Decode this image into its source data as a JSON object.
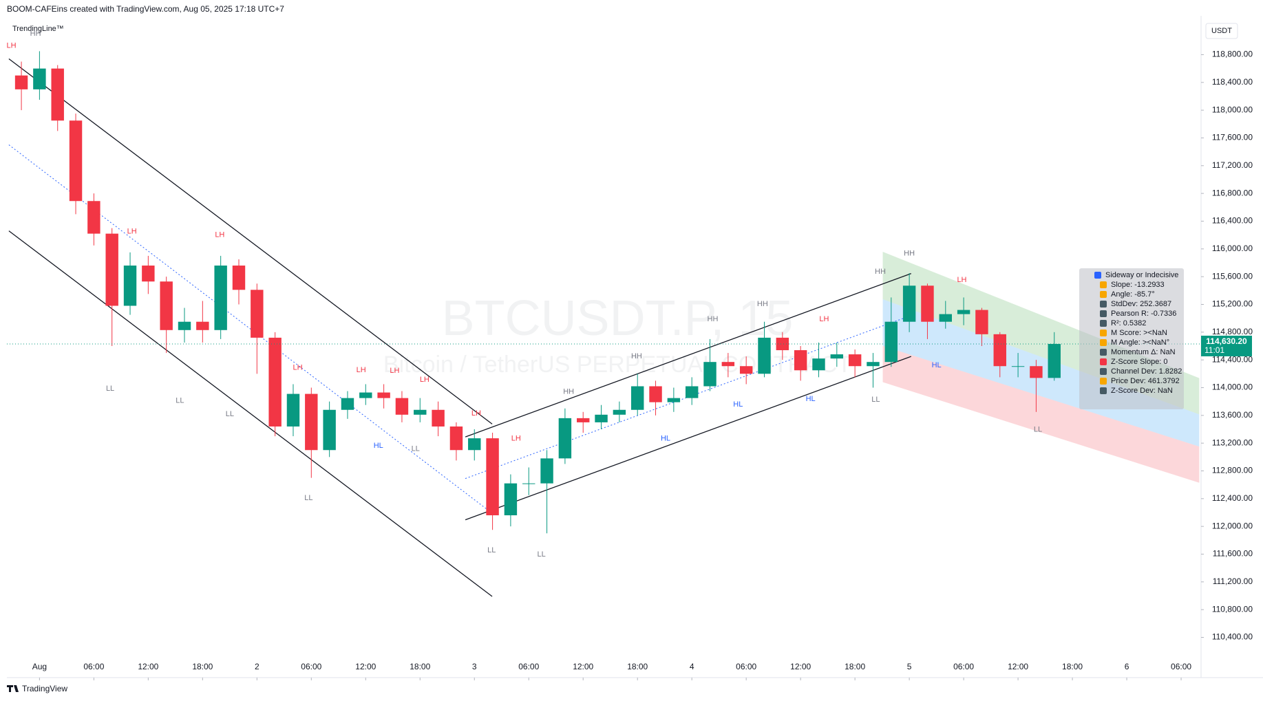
{
  "header": {
    "credit": "BOOM-CAFEins created with TradingView.com, Aug 05, 2025 17:18 UTC+7",
    "indicator": "TrendingLine™",
    "brand": "TradingView"
  },
  "info_panel": {
    "lines": [
      "Sideway or Indecisive",
      "Slope: -13.2933",
      "Angle: -85.7°",
      "StdDev: 252.3687",
      "Pearson R: -0.7336",
      "R²: 0.5382",
      "M Score: ><NaN",
      "M Angle: ><NaN°",
      "Momentum Δ: NaN",
      "Z-Score Slope: 0",
      "Channel Dev: 1.8282",
      "Price Dev: 461.3792",
      "Z-Score Dev: NaN"
    ]
  },
  "chart_data": {
    "type": "candlestick",
    "title": "BTCUSDT.P, 15",
    "subtitle": "Bitcoin / TetherUS PERPETUAL CONTRACT",
    "currency": "USDT",
    "up_color": "#089981",
    "down_color": "#f23645",
    "x": [
      -2,
      0,
      2,
      4,
      6,
      8,
      10,
      12,
      14,
      16,
      18,
      20,
      22,
      24,
      26,
      28,
      30,
      32,
      34,
      36,
      38,
      40,
      42,
      44,
      46,
      48,
      50,
      52,
      54,
      56,
      58,
      60,
      62,
      64,
      66,
      68,
      70,
      72,
      74,
      76,
      78,
      80,
      82,
      84,
      86,
      88,
      90,
      92,
      94,
      96,
      98,
      100,
      102,
      104,
      106,
      108,
      110,
      112
    ],
    "open": [
      118500,
      118300,
      118600,
      117850,
      116690,
      116220,
      115180,
      115760,
      115530,
      114830,
      114950,
      114830,
      115760,
      115410,
      114720,
      113440,
      113910,
      113100,
      113680,
      113850,
      113930,
      113850,
      113610,
      113680,
      113440,
      113100,
      113270,
      112160,
      112620,
      112620,
      112980,
      113560,
      113500,
      113610,
      113680,
      114020,
      113790,
      113850,
      114020,
      114370,
      114310,
      114200,
      114720,
      114540,
      114250,
      114420,
      114480,
      114310,
      114370,
      114950,
      115470,
      114950,
      115060,
      115120,
      114770,
      114310,
      114310,
      114140
    ],
    "high": [
      118700,
      118850,
      118650,
      117950,
      116800,
      116300,
      115950,
      115900,
      115600,
      115150,
      115250,
      115900,
      115850,
      115500,
      114800,
      114050,
      114000,
      113800,
      113950,
      114050,
      114050,
      113950,
      113850,
      113800,
      113500,
      113400,
      113350,
      112750,
      112850,
      113100,
      113700,
      113650,
      113750,
      113800,
      114200,
      114100,
      114000,
      114150,
      114700,
      114500,
      114450,
      114950,
      114800,
      114600,
      114650,
      114650,
      114550,
      114500,
      115300,
      115650,
      115500,
      115250,
      115300,
      115150,
      114800,
      114500,
      114400,
      114800
    ],
    "low": [
      118000,
      118150,
      117700,
      116500,
      116050,
      114600,
      115050,
      115350,
      114500,
      114650,
      114650,
      114700,
      115200,
      114200,
      113300,
      113300,
      112700,
      113000,
      113550,
      113750,
      113700,
      113500,
      113500,
      113300,
      112950,
      112950,
      111950,
      112000,
      112450,
      111900,
      112900,
      113350,
      113400,
      113500,
      113600,
      113600,
      113650,
      113750,
      113950,
      114150,
      114050,
      114150,
      114400,
      114100,
      114150,
      114300,
      114150,
      114000,
      114300,
      114800,
      114700,
      114850,
      114900,
      114600,
      114150,
      114150,
      113650,
      114100
    ],
    "close": [
      118300,
      118600,
      117850,
      116690,
      116220,
      115180,
      115760,
      115530,
      114830,
      114950,
      114830,
      115760,
      115410,
      114720,
      113440,
      113910,
      113100,
      113680,
      113850,
      113930,
      113850,
      113610,
      113680,
      113440,
      113100,
      113270,
      112160,
      112620,
      112620,
      112980,
      113560,
      113500,
      113610,
      113680,
      114020,
      113790,
      113850,
      114020,
      114370,
      114310,
      114200,
      114720,
      114540,
      114250,
      114420,
      114480,
      114310,
      114370,
      114950,
      115470,
      114950,
      115060,
      115120,
      114770,
      114310,
      114310,
      114140,
      114630
    ],
    "xlim": [
      -3.6,
      128.2
    ],
    "xticks": [
      {
        "value": 0,
        "label": "Aug"
      },
      {
        "value": 6,
        "label": "06:00"
      },
      {
        "value": 12,
        "label": "12:00"
      },
      {
        "value": 18,
        "label": "18:00"
      },
      {
        "value": 24,
        "label": "2"
      },
      {
        "value": 30,
        "label": "06:00"
      },
      {
        "value": 36,
        "label": "12:00"
      },
      {
        "value": 42,
        "label": "18:00"
      },
      {
        "value": 48,
        "label": "3"
      },
      {
        "value": 54,
        "label": "06:00"
      },
      {
        "value": 60,
        "label": "12:00"
      },
      {
        "value": 66,
        "label": "18:00"
      },
      {
        "value": 72,
        "label": "4"
      },
      {
        "value": 78,
        "label": "06:00"
      },
      {
        "value": 84,
        "label": "12:00"
      },
      {
        "value": 90,
        "label": "18:00"
      },
      {
        "value": 96,
        "label": "5"
      },
      {
        "value": 102,
        "label": "06:00"
      },
      {
        "value": 108,
        "label": "12:00"
      },
      {
        "value": 114,
        "label": "18:00"
      },
      {
        "value": 120,
        "label": "6"
      },
      {
        "value": 126,
        "label": "06:00"
      }
    ],
    "ylim": [
      109820,
      119360
    ],
    "yticks": [
      {
        "value": 110400,
        "label": "110,400.00"
      },
      {
        "value": 110800,
        "label": "110,800.00"
      },
      {
        "value": 111200,
        "label": "111,200.00"
      },
      {
        "value": 111600,
        "label": "111,600.00"
      },
      {
        "value": 112000,
        "label": "112,000.00"
      },
      {
        "value": 112400,
        "label": "112,400.00"
      },
      {
        "value": 112800,
        "label": "112,800.00"
      },
      {
        "value": 113200,
        "label": "113,200.00"
      },
      {
        "value": 113600,
        "label": "113,600.00"
      },
      {
        "value": 114000,
        "label": "114,000.00"
      },
      {
        "value": 114400,
        "label": "114,400.00"
      },
      {
        "value": 114800,
        "label": "114,800.00"
      },
      {
        "value": 115200,
        "label": "115,200.00"
      },
      {
        "value": 115600,
        "label": "115,600.00"
      },
      {
        "value": 116000,
        "label": "116,000.00"
      },
      {
        "value": 116400,
        "label": "116,400.00"
      },
      {
        "value": 116800,
        "label": "116,800.00"
      },
      {
        "value": 117200,
        "label": "117,200.00"
      },
      {
        "value": 117600,
        "label": "117,600.00"
      },
      {
        "value": 118000,
        "label": "118,000.00"
      },
      {
        "value": 118400,
        "label": "118,400.00"
      },
      {
        "value": 118800,
        "label": "118,800.00"
      }
    ],
    "last_price": {
      "value": 114630.2,
      "label": "114,630.20"
    },
    "countdown": "11:01",
    "trendlines": [
      {
        "x": [
          -3.38,
          49.96
        ],
        "y": [
          118740,
          113476
        ],
        "style": "solid"
      },
      {
        "x": [
          -3.38,
          49.96
        ],
        "y": [
          116260,
          110990
        ],
        "style": "solid"
      },
      {
        "x": [
          -3.38,
          49.5
        ],
        "y": [
          117500,
          112235
        ],
        "style": "dotted"
      },
      {
        "x": [
          47.0,
          96.2
        ],
        "y": [
          113290,
          115645
        ],
        "style": "solid"
      },
      {
        "x": [
          47.0,
          96.2
        ],
        "y": [
          112095,
          114450
        ],
        "style": "solid"
      },
      {
        "x": [
          47.0,
          96.2
        ],
        "y": [
          112690,
          115040
        ],
        "style": "dotted"
      }
    ],
    "bands": [
      {
        "color": "rgba(76,175,80,0.22)",
        "x": [
          93.07,
          128
        ],
        "upper": [
          115958,
          114137
        ],
        "lower": [
          115274,
          113615
        ]
      },
      {
        "color": "rgba(33,150,243,0.22)",
        "x": [
          93.07,
          128
        ],
        "upper": [
          115274,
          113615
        ],
        "lower": [
          114601,
          113151
        ]
      },
      {
        "color": "rgba(242,54,69,0.2)",
        "x": [
          93.07,
          128
        ],
        "upper": [
          114601,
          113151
        ],
        "lower": [
          114079,
          112629
        ]
      }
    ],
    "annotations": [
      {
        "text": "LH",
        "x": -3.1,
        "y": 118928,
        "color": "#f23645"
      },
      {
        "text": "HH",
        "x": -0.44,
        "y": 119102,
        "color": "#787b86"
      },
      {
        "text": "LH",
        "x": 10.2,
        "y": 116248,
        "color": "#f23645"
      },
      {
        "text": "LH",
        "x": 19.9,
        "y": 116202,
        "color": "#f23645"
      },
      {
        "text": "LL",
        "x": 7.8,
        "y": 113986,
        "color": "#787b86"
      },
      {
        "text": "LL",
        "x": 15.5,
        "y": 113812,
        "color": "#787b86"
      },
      {
        "text": "LL",
        "x": 21.0,
        "y": 113615,
        "color": "#787b86"
      },
      {
        "text": "LH",
        "x": 28.5,
        "y": 114288,
        "color": "#f23645"
      },
      {
        "text": "LL",
        "x": 29.7,
        "y": 112408,
        "color": "#787b86"
      },
      {
        "text": "LH",
        "x": 35.5,
        "y": 114253,
        "color": "#f23645"
      },
      {
        "text": "LH",
        "x": 39.2,
        "y": 114241,
        "color": "#f23645"
      },
      {
        "text": "LH",
        "x": 42.5,
        "y": 114114,
        "color": "#f23645"
      },
      {
        "text": "HL",
        "x": 37.4,
        "y": 113162,
        "color": "#2962ff"
      },
      {
        "text": "LL",
        "x": 41.5,
        "y": 113116,
        "color": "#787b86"
      },
      {
        "text": "LH",
        "x": 48.2,
        "y": 113626,
        "color": "#f23645"
      },
      {
        "text": "LH",
        "x": 52.6,
        "y": 113267,
        "color": "#f23645"
      },
      {
        "text": "LL",
        "x": 49.9,
        "y": 111654,
        "color": "#787b86"
      },
      {
        "text": "LL",
        "x": 55.4,
        "y": 111596,
        "color": "#787b86"
      },
      {
        "text": "HH",
        "x": 58.4,
        "y": 113940,
        "color": "#787b86"
      },
      {
        "text": "HH",
        "x": 65.9,
        "y": 114450,
        "color": "#787b86"
      },
      {
        "text": "HL",
        "x": 69.1,
        "y": 113267,
        "color": "#2962ff"
      },
      {
        "text": "HH",
        "x": 74.3,
        "y": 114984,
        "color": "#787b86"
      },
      {
        "text": "HH",
        "x": 79.8,
        "y": 115204,
        "color": "#787b86"
      },
      {
        "text": "HL",
        "x": 77.1,
        "y": 113754,
        "color": "#2962ff"
      },
      {
        "text": "LH",
        "x": 86.6,
        "y": 114984,
        "color": "#f23645"
      },
      {
        "text": "HL",
        "x": 85.1,
        "y": 113835,
        "color": "#2962ff"
      },
      {
        "text": "LL",
        "x": 92.3,
        "y": 113824,
        "color": "#787b86"
      },
      {
        "text": "HH",
        "x": 92.8,
        "y": 115668,
        "color": "#787b86"
      },
      {
        "text": "HH",
        "x": 96.0,
        "y": 115933,
        "color": "#787b86"
      },
      {
        "text": "LH",
        "x": 101.8,
        "y": 115552,
        "color": "#f23645"
      },
      {
        "text": "HL",
        "x": 99.0,
        "y": 114322,
        "color": "#2962ff"
      },
      {
        "text": "LL",
        "x": 110.2,
        "y": 113394,
        "color": "#787b86"
      }
    ]
  }
}
